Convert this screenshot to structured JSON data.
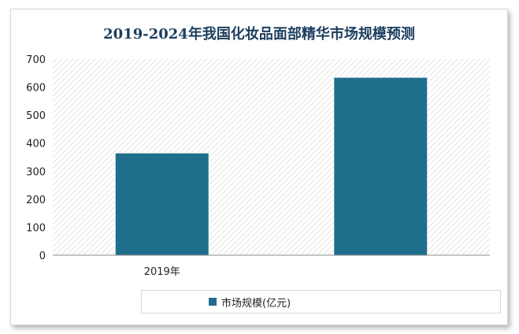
{
  "chart_data": {
    "type": "bar",
    "title": "2019-2024年我国化妆品面部精华市场规模预测",
    "categories": [
      "2019年",
      ""
    ],
    "series": [
      {
        "name": "市场规模(亿元)",
        "values": [
          365,
          635
        ],
        "color": "#1f6e8c"
      }
    ],
    "ylim": [
      0,
      700
    ],
    "yticks": [
      0,
      100,
      200,
      300,
      400,
      500,
      600,
      700
    ],
    "ytick_labels": [
      "0",
      "100",
      "200",
      "300",
      "400",
      "500",
      "600",
      "700"
    ],
    "grid": false,
    "legend": "bottom",
    "background_pattern": "diagonal-hatch"
  }
}
